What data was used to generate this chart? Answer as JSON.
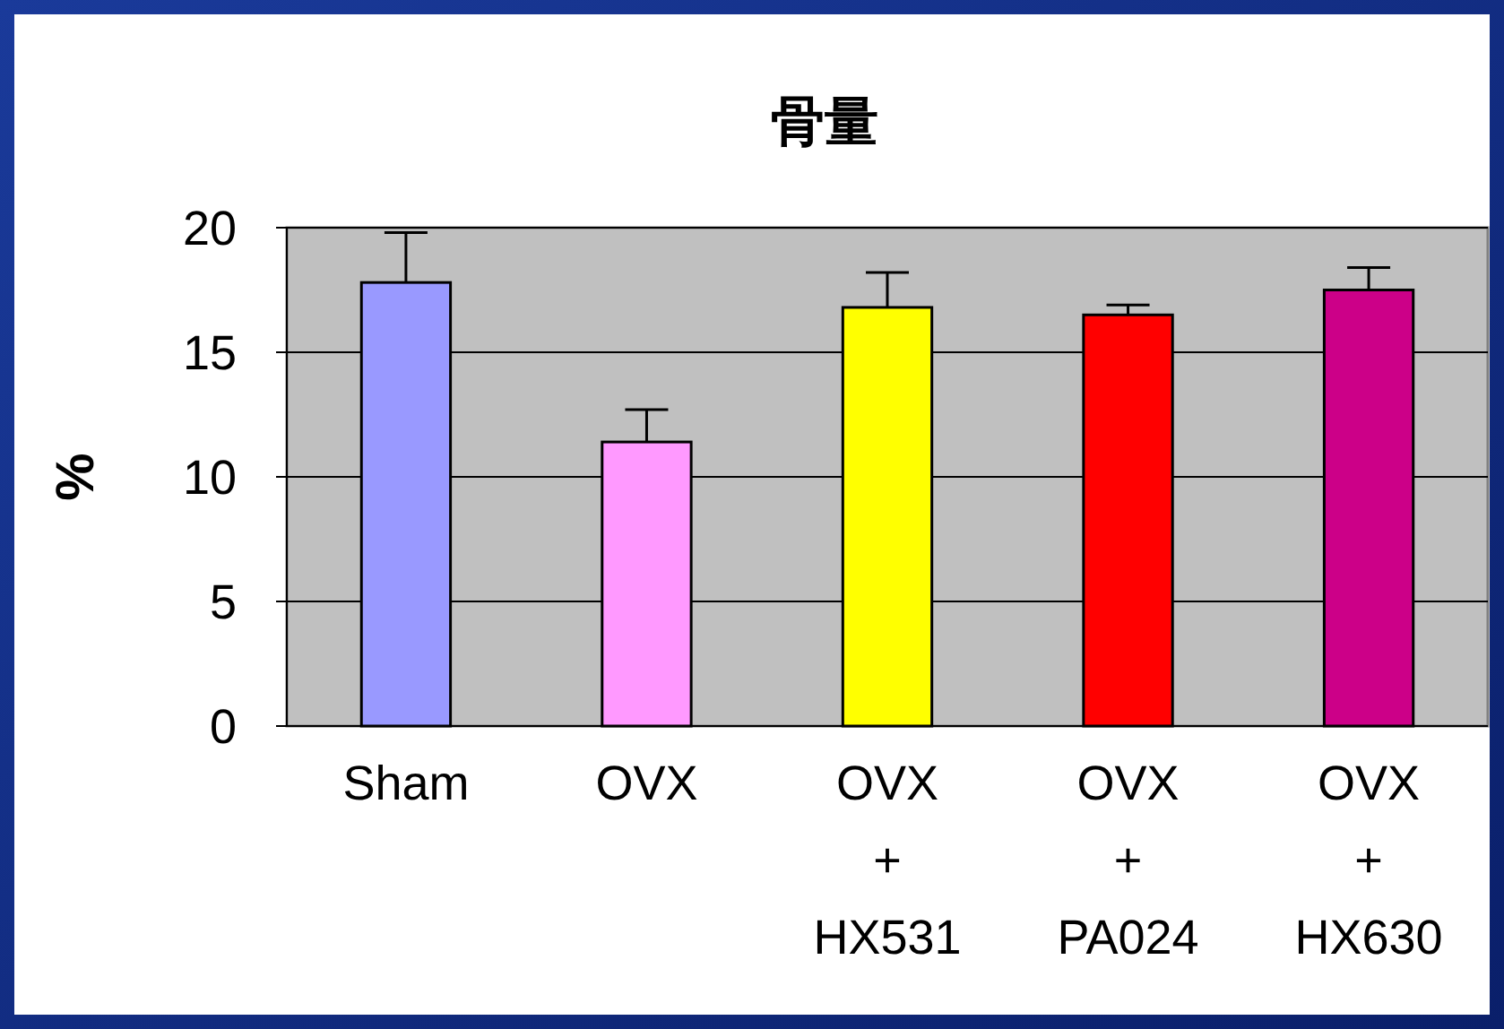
{
  "chart_data": {
    "type": "bar",
    "title": "骨量",
    "ylabel": "%",
    "categories": [
      "Sham",
      "OVX",
      "OVX\n+\nHX531",
      "OVX\n+\nPA024",
      "OVX\n+\nHX630"
    ],
    "values": [
      17.8,
      11.4,
      16.8,
      16.5,
      17.5
    ],
    "colors": [
      "#9999ff",
      "#ff99ff",
      "#ffff00",
      "#ff0000",
      "#cc0088"
    ],
    "errors": [
      [
        17.8,
        19.8
      ],
      [
        11.4,
        12.7
      ],
      [
        16.8,
        18.2
      ],
      [
        16.5,
        16.9
      ],
      [
        17.5,
        18.4
      ]
    ],
    "ylim": [
      0,
      20
    ],
    "yticks": [
      0,
      5,
      10,
      15,
      20
    ],
    "grid": "y"
  }
}
